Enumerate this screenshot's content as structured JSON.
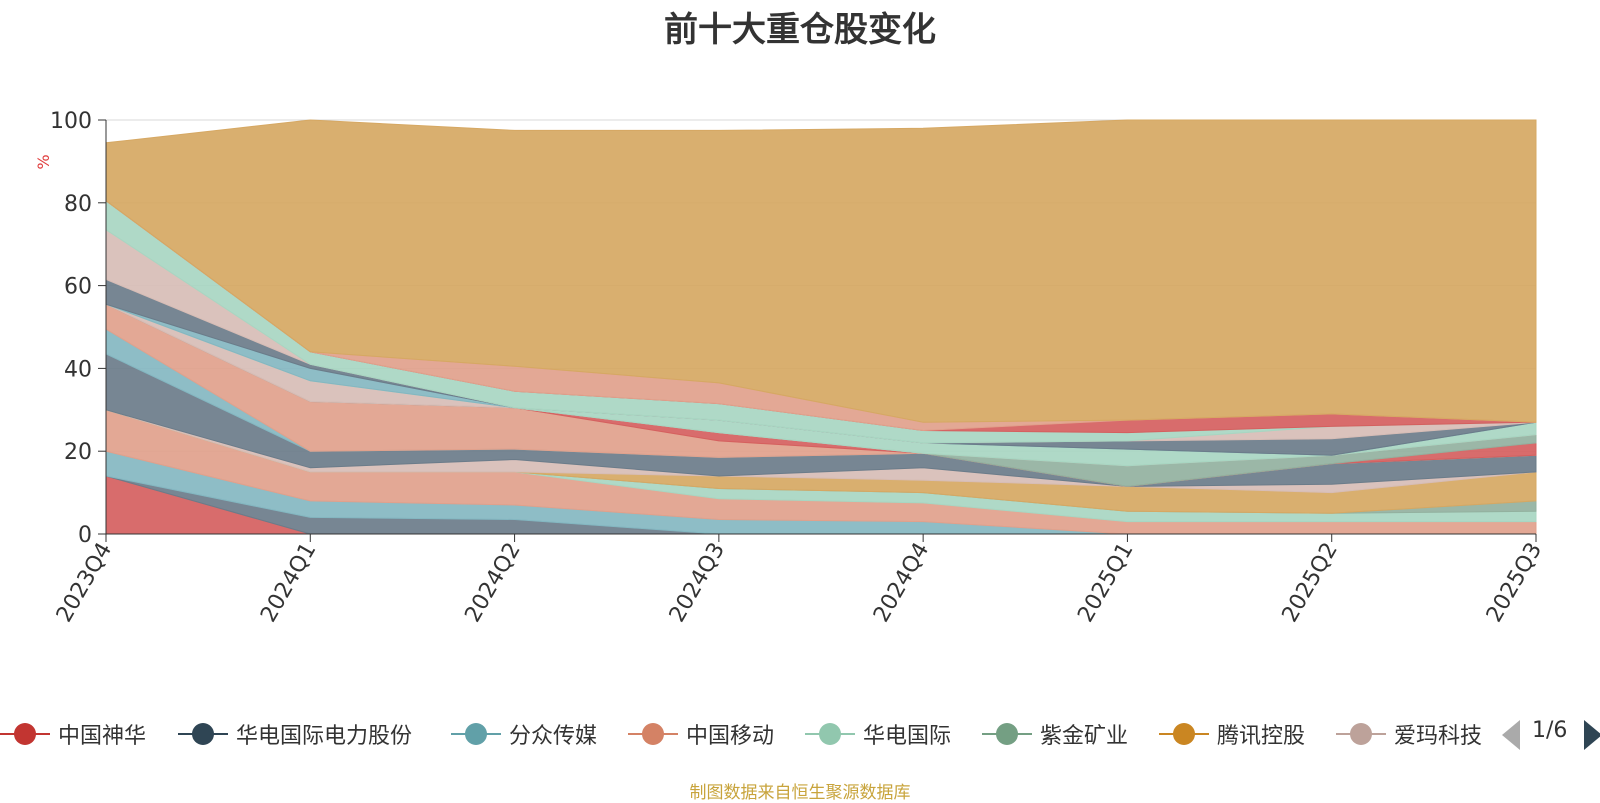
{
  "title": "前十大重仓股变化",
  "footer": "制图数据来自恒生聚源数据库",
  "legend_page": "1/6",
  "chart_data": {
    "type": "area",
    "stacked": true,
    "title": "前十大重仓股变化",
    "ylabel": "%",
    "ylim": [
      0,
      100
    ],
    "yticks": [
      0,
      20,
      40,
      60,
      80,
      100
    ],
    "grid": true,
    "legend_position": "bottom",
    "x": [
      "2023Q4",
      "2024Q1",
      "2024Q2",
      "2024Q3",
      "2024Q4",
      "2025Q1",
      "2025Q2",
      "2025Q3"
    ],
    "series": [
      {
        "name": "中国神华",
        "color": "#d5605f",
        "values": [
          14,
          0,
          0,
          0,
          0,
          0,
          0,
          0
        ]
      },
      {
        "name": "华电国际电力股份",
        "color": "#6b7c8a",
        "values": [
          0,
          4,
          3.5,
          0,
          0,
          0,
          0,
          0
        ]
      },
      {
        "name": "分众传媒",
        "color": "#84b7c1",
        "values": [
          6,
          4,
          3.5,
          3.5,
          3,
          0,
          0,
          0
        ]
      },
      {
        "name": "中国移动",
        "color": "#e1a18c",
        "values": [
          10,
          7,
          8,
          5,
          4.5,
          3,
          3,
          3
        ]
      },
      {
        "name": "华电国际",
        "color": "#a8d6c2",
        "values": [
          0,
          0,
          0,
          2.5,
          2.5,
          2.5,
          2,
          2.5
        ]
      },
      {
        "name": "紫金矿业",
        "color": "#93b19f",
        "values": [
          0,
          0,
          0,
          0,
          0,
          0,
          0,
          2.5
        ]
      },
      {
        "name": "腾讯控股",
        "color": "#d6a863",
        "values": [
          0,
          0,
          0,
          3,
          3,
          6,
          5,
          7
        ]
      },
      {
        "name": "爱玛科技",
        "color": "#d7bdb6",
        "values": [
          0,
          1,
          3,
          0,
          3,
          0,
          2,
          0
        ]
      },
      {
        "name": "",
        "color": "#6b7c8a",
        "values": [
          13.5,
          4,
          2.5,
          4.5,
          3.5,
          0,
          5,
          4
        ]
      },
      {
        "name": "",
        "color": "#84b7c1",
        "values": [
          6,
          0,
          0,
          0,
          0,
          0,
          0,
          0
        ]
      },
      {
        "name": "",
        "color": "#e1a18c",
        "values": [
          6,
          12,
          10,
          4,
          0,
          0,
          0,
          0
        ]
      },
      {
        "name": "",
        "color": "#d5605f",
        "values": [
          0,
          0,
          0,
          2,
          0,
          0,
          0,
          3
        ]
      },
      {
        "name": "",
        "color": "#93b19f",
        "values": [
          0,
          0,
          0,
          0,
          0,
          5,
          2,
          2
        ]
      },
      {
        "name": "",
        "color": "#d7bdb6",
        "values": [
          0,
          5,
          0,
          0,
          0,
          0,
          0,
          0
        ]
      },
      {
        "name": "",
        "color": "#a8d6c2",
        "values": [
          0,
          0,
          0,
          3,
          2.5,
          4,
          0,
          3
        ]
      },
      {
        "name": "",
        "color": "#84b7c1",
        "values": [
          0,
          3,
          0,
          0,
          0,
          0,
          0,
          0
        ]
      },
      {
        "name": "",
        "color": "#6b7c8a",
        "values": [
          6,
          1,
          0,
          0,
          0,
          2,
          4,
          0
        ]
      },
      {
        "name": "",
        "color": "#d7bdb6",
        "values": [
          12,
          0,
          0,
          0,
          0,
          0,
          3,
          0
        ]
      },
      {
        "name": "",
        "color": "#a8d6c2",
        "values": [
          7,
          3,
          4,
          4,
          3,
          2,
          0,
          0
        ]
      },
      {
        "name": "",
        "color": "#d5605f",
        "values": [
          0,
          0,
          0,
          0,
          0,
          3,
          3,
          0
        ]
      },
      {
        "name": "",
        "color": "#e1a18c",
        "values": [
          0,
          0,
          6,
          5,
          2,
          0,
          0,
          0
        ]
      },
      {
        "name": "",
        "color": "#d6a863",
        "values": [
          14,
          56,
          57,
          61,
          71,
          72.5,
          71,
          73
        ]
      }
    ]
  }
}
